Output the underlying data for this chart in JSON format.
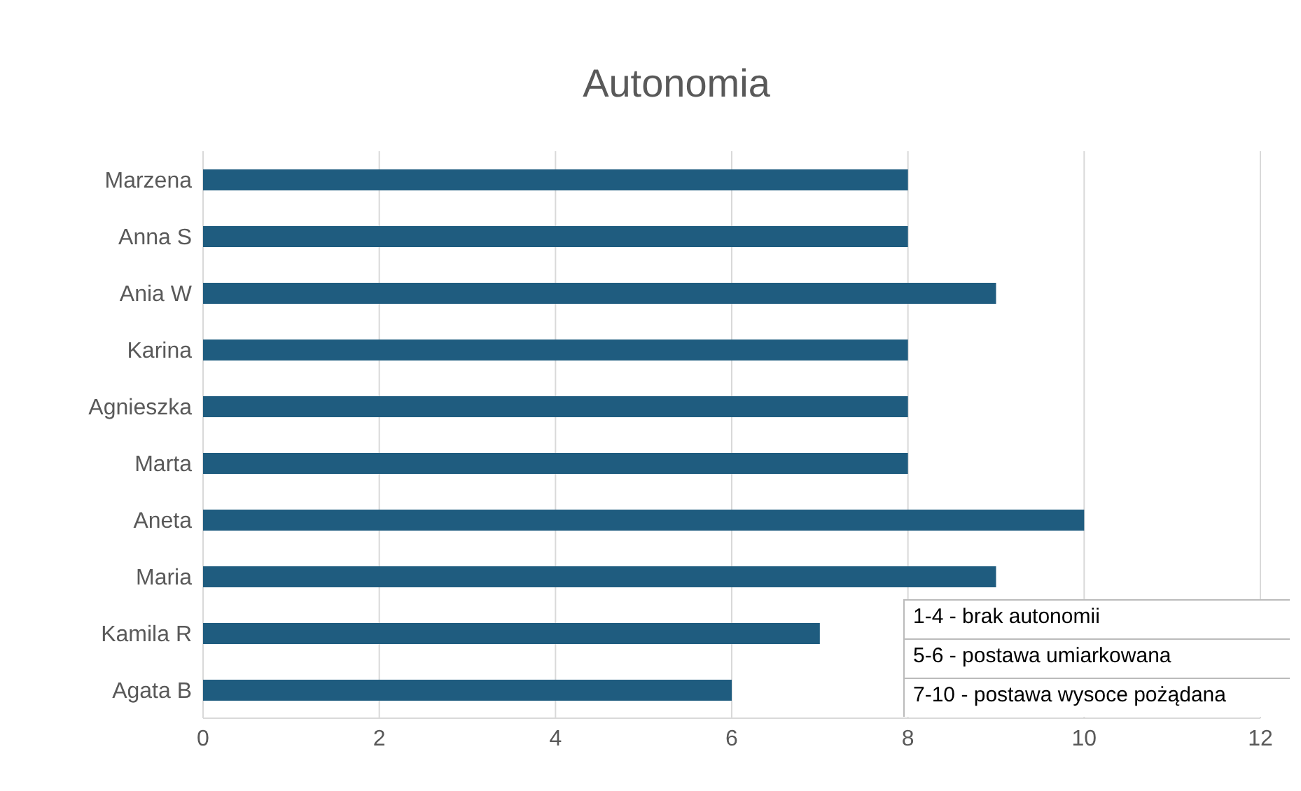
{
  "chart_data": {
    "type": "bar",
    "orientation": "horizontal",
    "title": "Autonomia",
    "categories": [
      "Marzena",
      "Anna S",
      "Ania W",
      "Karina",
      "Agnieszka ",
      "Marta",
      "Aneta",
      "Maria",
      "Kamila R",
      "Agata B"
    ],
    "values": [
      8,
      8,
      9,
      8,
      8,
      8,
      10,
      9,
      7,
      6
    ],
    "color": "#1f5c7f",
    "xlim": [
      0,
      12
    ],
    "xticks": [
      0,
      2,
      4,
      6,
      8,
      10,
      12
    ],
    "grid": "x",
    "annotations": [
      "1-4  - brak autonomii",
      "5-6 - postawa umiarkowana",
      "7-10 - postawa wysoce pożądana"
    ]
  }
}
